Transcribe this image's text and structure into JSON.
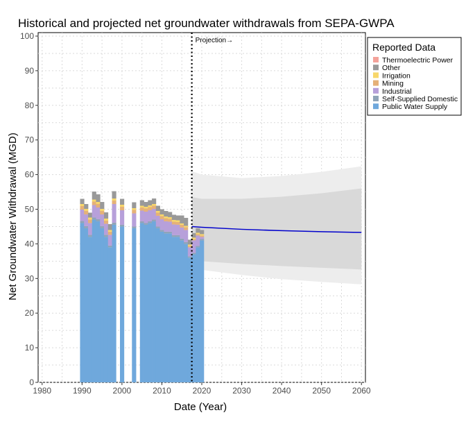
{
  "chart_data": {
    "type": "bar",
    "title": "Historical and projected net groundwater withdrawals from SEPA-GWPA",
    "xlabel": "Date (Year)",
    "ylabel": "Net Groundwater Withdrawal (MGD)",
    "xlim": [
      1979,
      2061
    ],
    "ylim": [
      0,
      101
    ],
    "x_ticks": [
      1980,
      1990,
      2000,
      2010,
      2020,
      2030,
      2040,
      2050,
      2060
    ],
    "x_tick_labels": [
      "1980",
      "1990",
      "2000",
      "2010",
      "2020",
      "2030",
      "2040",
      "2050",
      "2060"
    ],
    "y_ticks": [
      0,
      10,
      20,
      30,
      40,
      50,
      60,
      70,
      80,
      90,
      100
    ],
    "y_tick_labels": [
      "0",
      "10",
      "20",
      "30",
      "40",
      "50",
      "60",
      "70",
      "80",
      "90",
      "100"
    ],
    "grid": true,
    "stacked": true,
    "legend": {
      "title": "Reported Data",
      "placement": "right-top",
      "entries": [
        {
          "name": "Thermoelectric Power",
          "color": "#f4a29a"
        },
        {
          "name": "Other",
          "color": "#999999"
        },
        {
          "name": "Irrigation",
          "color": "#f7d76b"
        },
        {
          "name": "Mining",
          "color": "#e5b178"
        },
        {
          "name": "Industrial",
          "color": "#b7a0da"
        },
        {
          "name": "Self-Supplied Domestic",
          "color": "#8fa4b8"
        },
        {
          "name": "Public Water Supply",
          "color": "#6fa8dc"
        }
      ]
    },
    "years": [
      1990,
      1991,
      1992,
      1993,
      1994,
      1995,
      1996,
      1997,
      1998,
      2000,
      2003,
      2005,
      2006,
      2007,
      2008,
      2009,
      2010,
      2011,
      2012,
      2013,
      2014,
      2015,
      2016,
      2017,
      2018,
      2019,
      2020
    ],
    "series": [
      {
        "name": "Public Water Supply",
        "values": [
          46,
          44.5,
          42,
          47,
          46.5,
          44.5,
          42,
          39,
          45.5,
          45,
          44.5,
          46,
          45.5,
          46,
          46.5,
          44.5,
          43.5,
          43,
          43,
          42,
          42,
          41,
          40,
          36,
          37,
          39,
          41
        ]
      },
      {
        "name": "Self-Supplied Domestic",
        "values": [
          0.6,
          0.6,
          0.6,
          0.6,
          0.6,
          0.6,
          0.6,
          0.5,
          0.6,
          0.5,
          0.5,
          0.5,
          0.5,
          0.5,
          0.5,
          0.5,
          0.5,
          0.5,
          0.5,
          0.5,
          0.5,
          0.5,
          0.5,
          0.4,
          0.4,
          0.4,
          0.4
        ]
      },
      {
        "name": "Industrial",
        "values": [
          3.3,
          3.4,
          3.4,
          3.6,
          3.4,
          3.4,
          3.2,
          3.1,
          5.4,
          4.2,
          3.8,
          3.1,
          3.3,
          3.2,
          3.1,
          3.1,
          3.1,
          3.0,
          2.9,
          3.1,
          3.0,
          3.2,
          3.5,
          2.6,
          3.6,
          3.0,
          0.6
        ]
      },
      {
        "name": "Mining",
        "values": [
          1.0,
          1.0,
          1.0,
          1.0,
          1.0,
          1.0,
          0.9,
          0.9,
          1.0,
          1.0,
          1.0,
          0.9,
          0.9,
          0.9,
          0.9,
          0.9,
          0.9,
          0.9,
          0.8,
          0.8,
          0.8,
          0.8,
          0.8,
          0.4,
          0.4,
          0.4,
          0.4
        ]
      },
      {
        "name": "Irrigation",
        "values": [
          0.6,
          0.6,
          0.6,
          0.6,
          0.6,
          0.6,
          0.6,
          0.5,
          0.6,
          0.6,
          0.5,
          0.5,
          0.5,
          0.5,
          0.5,
          0.5,
          0.5,
          0.5,
          0.5,
          0.5,
          0.5,
          0.4,
          0.4,
          0.4,
          0.4,
          0.4,
          0.4
        ]
      },
      {
        "name": "Other",
        "values": [
          1.5,
          1.4,
          1.4,
          2.3,
          2.2,
          2.0,
          1.8,
          1.7,
          2.1,
          1.7,
          1.7,
          1.6,
          1.4,
          1.5,
          1.6,
          1.5,
          1.5,
          1.6,
          1.5,
          1.5,
          1.4,
          2.3,
          2.3,
          1.4,
          1.3,
          1.3,
          1.2
        ]
      },
      {
        "name": "Thermoelectric Power",
        "values": [
          0,
          0,
          0,
          0,
          0,
          0,
          0,
          0,
          0,
          0,
          0,
          0,
          0,
          0,
          0,
          0,
          0,
          0,
          0,
          0,
          0,
          0,
          0,
          0,
          0,
          0,
          0
        ]
      }
    ],
    "projection": {
      "start_year": 2017.5,
      "label": "Projection→",
      "line": {
        "x": [
          2017.5,
          2020,
          2030,
          2040,
          2050,
          2060
        ],
        "y": [
          45,
          44.8,
          44.2,
          43.8,
          43.5,
          43.3
        ],
        "color": "#0000cc"
      },
      "inner_band": {
        "x": [
          2017.5,
          2020,
          2030,
          2040,
          2050,
          2060
        ],
        "lower": [
          35.5,
          35.0,
          34.2,
          33.6,
          33.1,
          32.6
        ],
        "upper": [
          53.5,
          53.0,
          53.0,
          53.6,
          54.6,
          56.0
        ],
        "color": "#d9d9d9"
      },
      "outer_band": {
        "x": [
          2017.5,
          2020,
          2030,
          2040,
          2050,
          2060
        ],
        "lower": [
          33.0,
          32.5,
          31.0,
          29.8,
          29.0,
          28.3
        ],
        "upper": [
          61.0,
          60.0,
          59.0,
          59.6,
          60.8,
          62.4
        ],
        "color": "#ededed"
      }
    }
  }
}
